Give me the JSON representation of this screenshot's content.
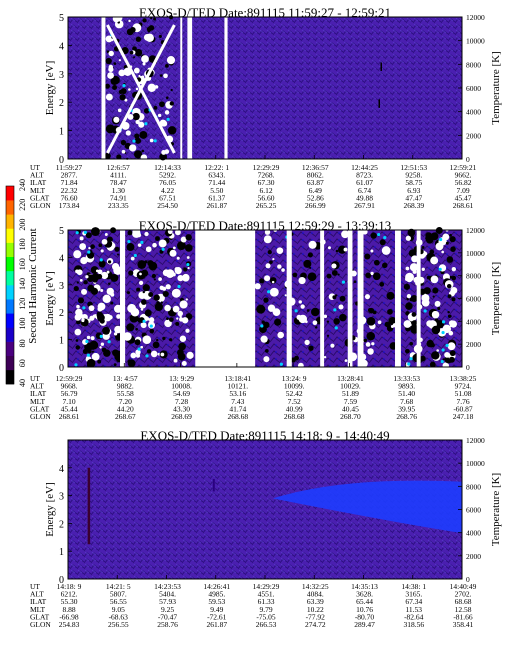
{
  "colorbar": {
    "label": "Second Harmonic Current",
    "ticks": [
      "40",
      "60",
      "80",
      "100",
      "120",
      "140",
      "160",
      "180",
      "200",
      "220",
      "240"
    ],
    "colors": [
      "#000000",
      "#3d0055",
      "#4a007f",
      "#1a00c8",
      "#0000ff",
      "#0078ff",
      "#00d2ff",
      "#00ffa0",
      "#00ff00",
      "#96ff00",
      "#ffff00",
      "#ffb400",
      "#ff6400",
      "#ff0000"
    ]
  },
  "chart_data": [
    {
      "type": "heatmap",
      "title": "EXOS-D/TED   Date:891115   11:59:27 - 12:59:21",
      "ylabel": "Energy [eV]",
      "y2label": "Temperature [K]",
      "ylim": [
        0,
        5
      ],
      "y2lim": [
        0,
        12000
      ],
      "yticks": [
        "0",
        "1",
        "2",
        "3",
        "4",
        "5"
      ],
      "y2ticks": [
        "0",
        "2000",
        "4000",
        "6000",
        "8000",
        "10000",
        "12000"
      ],
      "row_labels": [
        "UT",
        "ALT",
        "ILAT",
        "MLT",
        "GLAT",
        "GLON"
      ],
      "columns": [
        [
          "11:59:27",
          "2877.",
          "71.84",
          "22.32",
          "76.60",
          "173.84"
        ],
        [
          "12:6:57",
          "4111.",
          "78.47",
          "1.30",
          "74.91",
          "233.35"
        ],
        [
          "12:14:33",
          "5292.",
          "76.05",
          "4.22",
          "67.51",
          "254.50"
        ],
        [
          "12:22: 1",
          "6343.",
          "71.44",
          "5.50",
          "61.37",
          "261.87"
        ],
        [
          "12:29:29",
          "7268.",
          "67.30",
          "6.12",
          "56.60",
          "265.25"
        ],
        [
          "12:36:57",
          "8062.",
          "63.87",
          "6.49",
          "52.86",
          "266.99"
        ],
        [
          "12:44:25",
          "8723.",
          "61.07",
          "6.74",
          "49.88",
          "267.91"
        ],
        [
          "12:51:53",
          "9258.",
          "58.75",
          "6.93",
          "47.47",
          "268.39"
        ],
        [
          "12:59:21",
          "9662.",
          "56.82",
          "7.09",
          "45.47",
          "268.61"
        ]
      ]
    },
    {
      "type": "heatmap",
      "title": "EXOS-D/TED   Date:891115   12:59:29 - 13:39:13",
      "ylabel": "Energy [eV]",
      "y2label": "Temperature [K]",
      "ylim": [
        0,
        5
      ],
      "y2lim": [
        0,
        12000
      ],
      "yticks": [
        "0",
        "1",
        "2",
        "3",
        "4",
        "5"
      ],
      "y2ticks": [
        "0",
        "2000",
        "4000",
        "6000",
        "8000",
        "10000",
        "12000"
      ],
      "row_labels": [
        "UT",
        "ALT",
        "ILAT",
        "MLT",
        "GLAT",
        "GLON"
      ],
      "columns": [
        [
          "12:59:29",
          "9668.",
          "56.79",
          "7.10",
          "45.44",
          "268.61"
        ],
        [
          "13: 4:57",
          "9882.",
          "55.58",
          "7.20",
          "44.20",
          "268.67"
        ],
        [
          "13: 9:29",
          "10008.",
          "54.69",
          "7.28",
          "43.30",
          "268.69"
        ],
        [
          "13:18:41",
          "10121.",
          "53.16",
          "7.43",
          "41.74",
          "268.68"
        ],
        [
          "13:24: 9",
          "10099.",
          "52.42",
          "7.52",
          "40.99",
          "268.68"
        ],
        [
          "13:28:41",
          "10029.",
          "51.89",
          "7.59",
          "40.45",
          "268.70"
        ],
        [
          "13:33:53",
          "9893.",
          "51.40",
          "7.68",
          "39.95",
          "268.76"
        ],
        [
          "13:38:25",
          "9724.",
          "51.08",
          "7.76",
          "-60.87",
          "247.18"
        ]
      ]
    },
    {
      "type": "heatmap",
      "title": "EXOS-D/TED   Date:891115   14:18: 9 - 14:40:49",
      "ylabel": "Energy [eV]",
      "y2label": "Temperature [K]",
      "ylim": [
        0,
        5
      ],
      "y2lim": [
        0,
        12000
      ],
      "yticks": [
        "0",
        "1",
        "2",
        "3",
        "4"
      ],
      "y2ticks": [
        "0",
        "2000",
        "4000",
        "6000",
        "8000",
        "10000",
        "12000"
      ],
      "row_labels": [
        "UT",
        "ALT",
        "ILAT",
        "MLT",
        "GLAT",
        "GLON"
      ],
      "columns": [
        [
          "14:18: 9",
          "6212.",
          "55.30",
          "8.88",
          "-66.98",
          "254.83"
        ],
        [
          "14:21: 5",
          "5807.",
          "56.55",
          "9.05",
          "-68.63",
          "256.55"
        ],
        [
          "14:23:53",
          "5404.",
          "57.93",
          "9.25",
          "-70.47",
          "258.76"
        ],
        [
          "14:26:41",
          "4985.",
          "59.53",
          "9.49",
          "-72.61",
          "261.87"
        ],
        [
          "14:29:29",
          "4551.",
          "61.33",
          "9.79",
          "-75.05",
          "266.53"
        ],
        [
          "14:32:25",
          "4084.",
          "63.39",
          "10.22",
          "-77.92",
          "274.72"
        ],
        [
          "14:35:13",
          "3628.",
          "65.44",
          "10.76",
          "-80.70",
          "289.47"
        ],
        [
          "14:38: 1",
          "3165.",
          "67.34",
          "11.53",
          "-82.64",
          "318.56"
        ],
        [
          "14:40:49",
          "2702.",
          "68.68",
          "12.58",
          "-81.66",
          "358.41"
        ]
      ]
    }
  ]
}
